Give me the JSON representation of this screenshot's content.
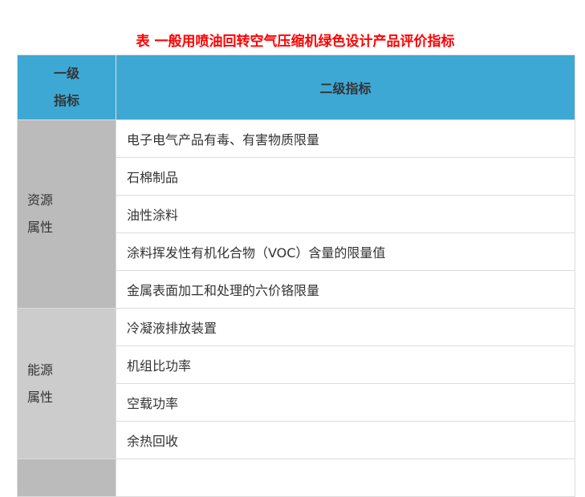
{
  "title": "表  一般用喷油回转空气压缩机绿色设计产品评价指标",
  "header": {
    "col1_line1": "一级",
    "col1_line2": "指标",
    "col2": "二级指标"
  },
  "groups": [
    {
      "line1": "资源",
      "line2": "属性",
      "items": [
        "电子电气产品有毒、有害物质限量",
        "石棉制品",
        "油性涂料",
        "涂料挥发性有机化合物（VOC）含量的限量值",
        "金属表面加工和处理的六价铬限量"
      ]
    },
    {
      "line1": "能源",
      "line2": "属性",
      "items": [
        "冷凝液排放装置",
        "机组比功率",
        "空载功率",
        "余热回收"
      ]
    }
  ],
  "colors": {
    "header_bg": "#3ea8d5",
    "title": "#ff0000",
    "group1_bg": "#bbbbbb",
    "group2_bg": "#cccccc"
  }
}
